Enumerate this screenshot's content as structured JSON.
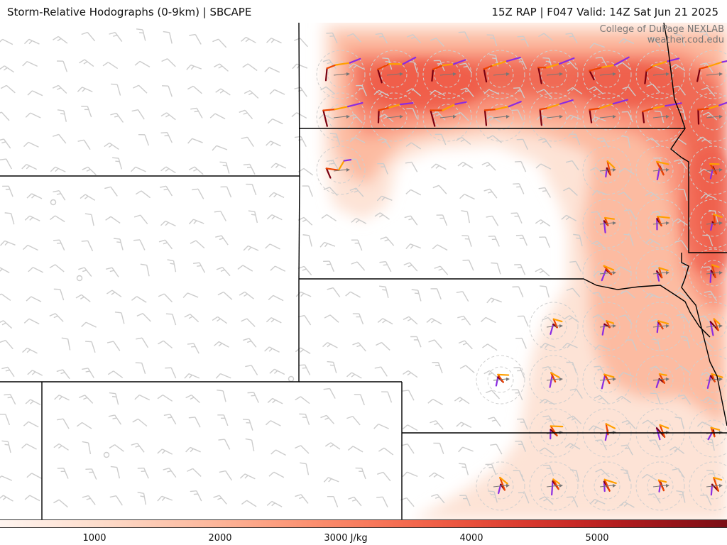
{
  "header": {
    "left_title": "Storm-Relative Hodographs (0-9km) | SBCAPE",
    "right_title": "15Z RAP | F047 Valid: 14Z Sat Jun 21 2025"
  },
  "credit": {
    "line1": "College of DuPage NEXLAB",
    "line2": "weather.cod.edu"
  },
  "colorbar": {
    "ticks": [
      "1000",
      "2000",
      "3000 J/kg",
      "4000",
      "5000"
    ],
    "colors": [
      "#fff5f0",
      "#fee8dd",
      "#fddbc9",
      "#fcc9b3",
      "#fcb89d",
      "#fca486",
      "#fb8f6f",
      "#f87b5d",
      "#f2664c",
      "#e9513c",
      "#db3c30",
      "#c92a26",
      "#b01c1e",
      "#951419",
      "#7a0e15"
    ]
  },
  "colors": {
    "boundary": "#000000",
    "wind_barb": "#cccccc",
    "hodo_low": "#7a0010",
    "hodo_mid": "#ee4400",
    "hodo_high": "#ffa000",
    "hodo_top": "#8a2be2"
  },
  "icons": {
    "wind_barb": "wind-barb-icon",
    "hodograph": "hodograph-icon",
    "calm_wind": "calm-circle-icon"
  }
}
